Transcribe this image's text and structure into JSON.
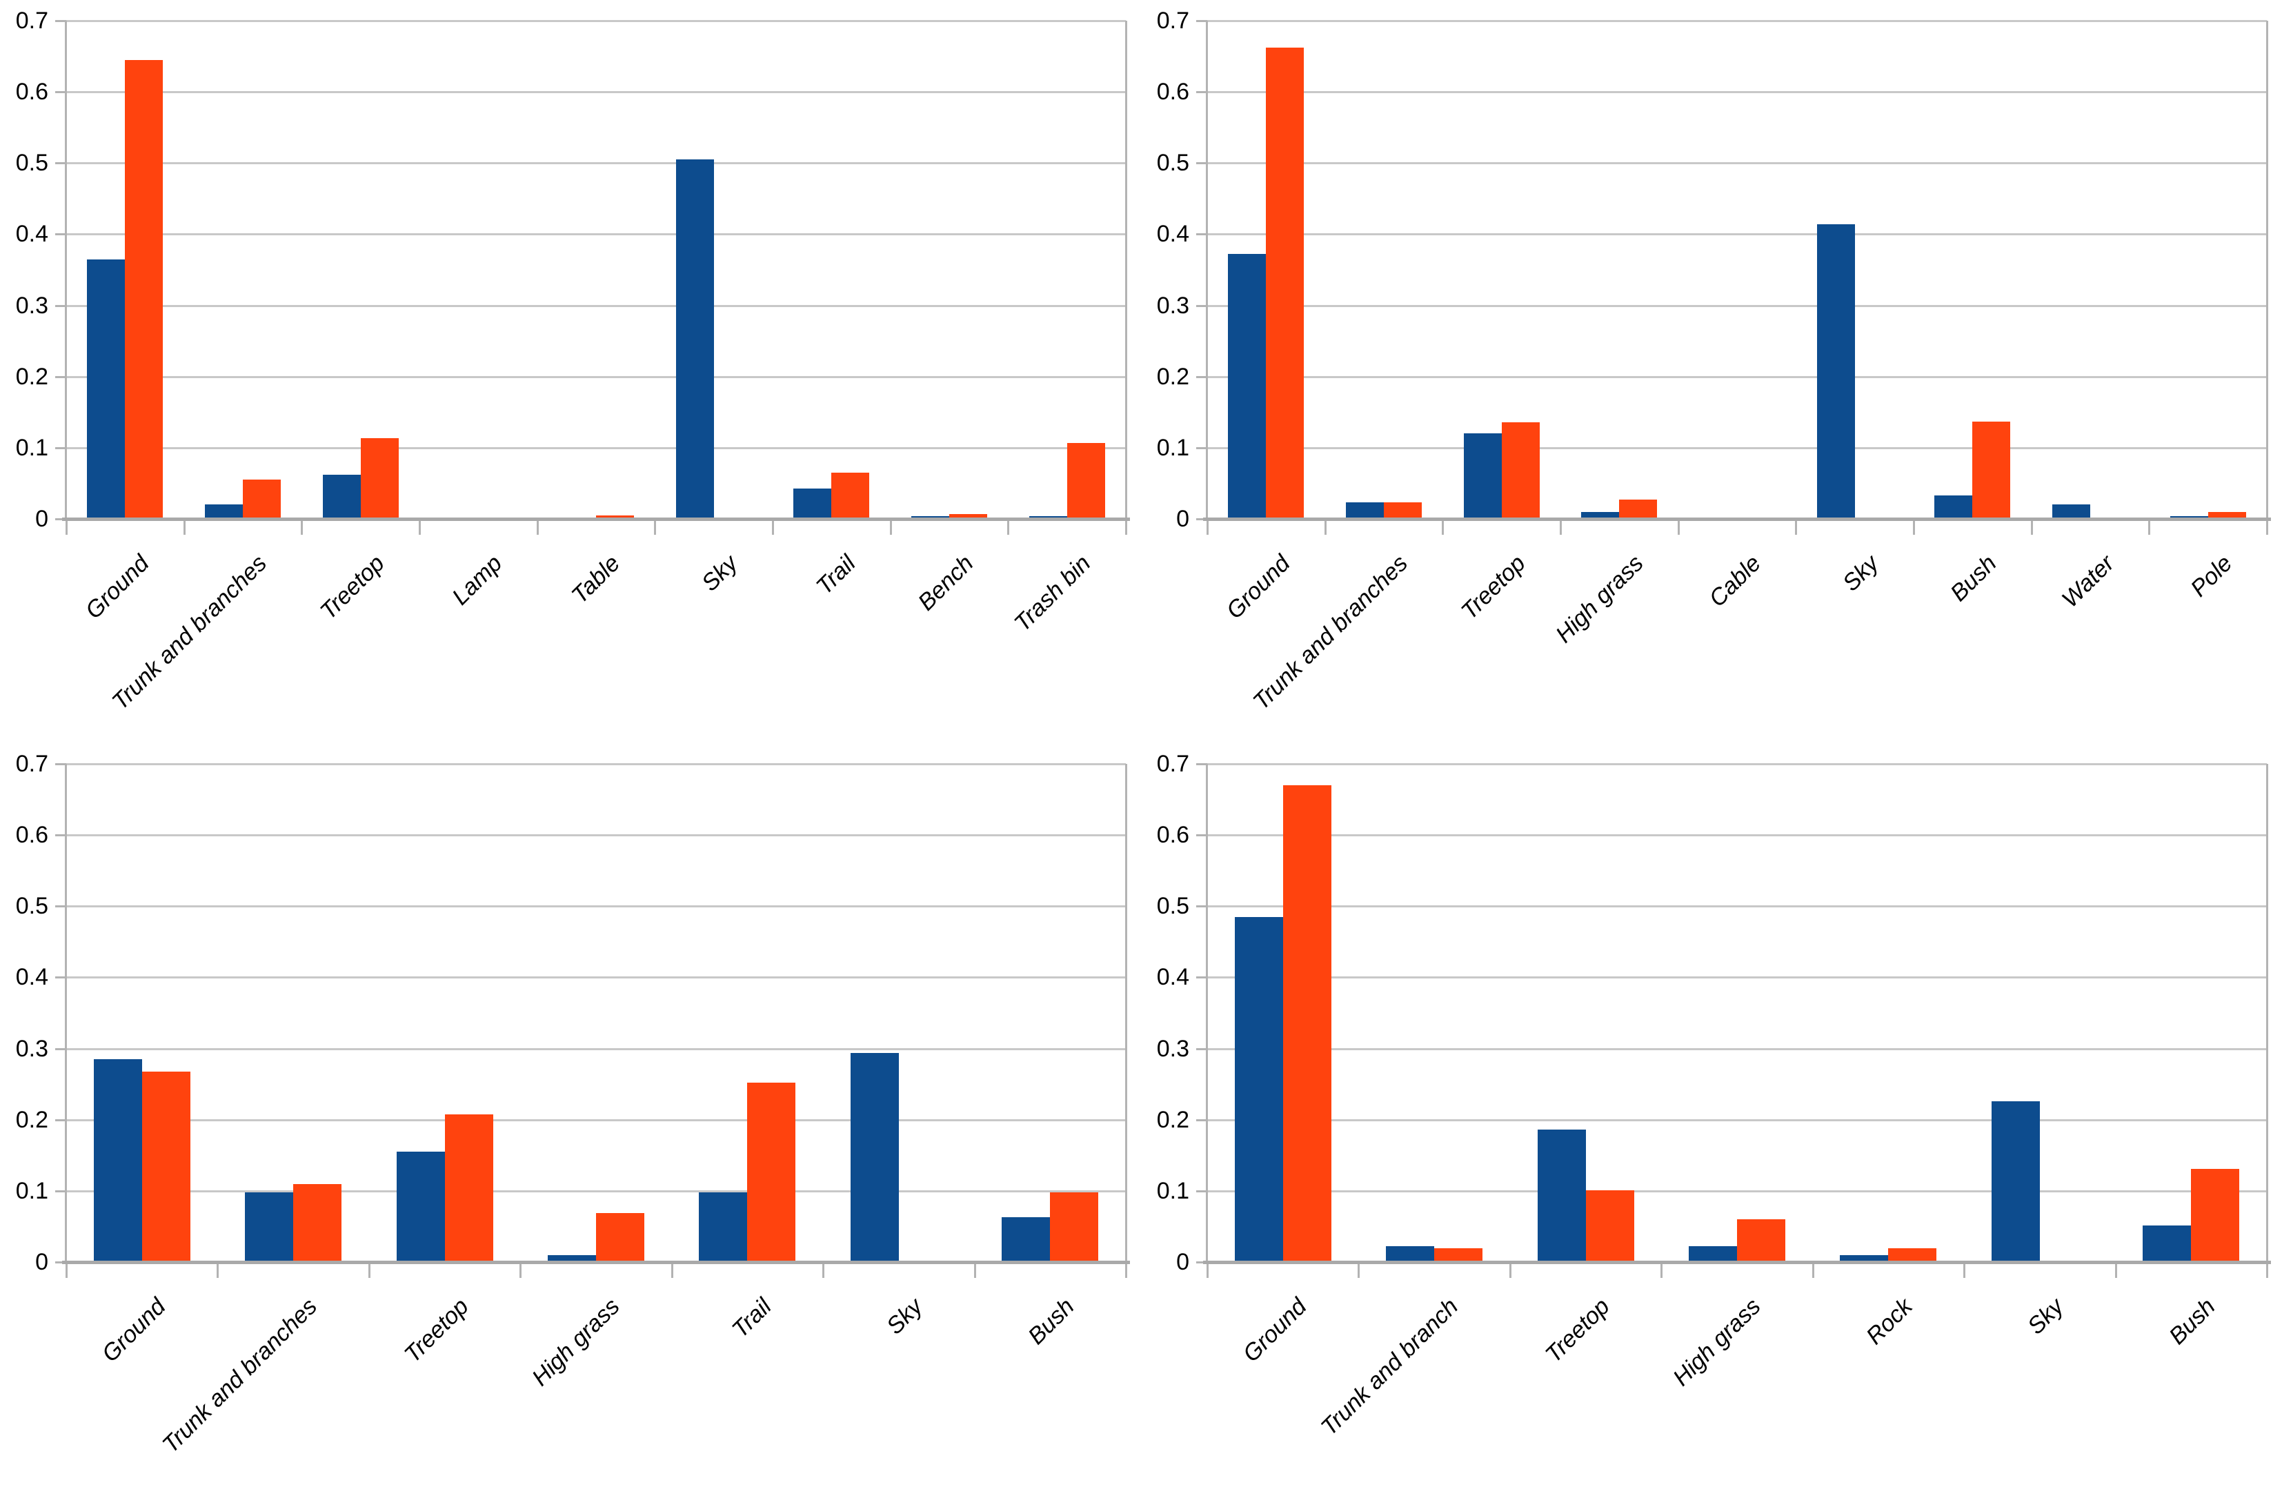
{
  "page": {
    "background": "#ffffff",
    "description_colors": {
      "series1_blue": "#0d4c8e",
      "series2_orange": "#ff430e",
      "gridline_gray": "#c8c8c8",
      "axis_gray": "#b3b3b3",
      "baseline_gray": "#a9a9a9",
      "text_black": "#000000"
    }
  },
  "axis": {
    "ytick_labels": [
      "0",
      "0.1",
      "0.2",
      "0.3",
      "0.4",
      "0.5",
      "0.6",
      "0.7"
    ],
    "ymin": 0,
    "ymax": 0.7,
    "ystep": 0.1
  },
  "chart_data": [
    {
      "type": "bar",
      "position": "top-left",
      "title": "",
      "xlabel": "",
      "ylabel": "",
      "ylim": [
        0,
        0.7
      ],
      "grid": true,
      "legend": "none",
      "categories": [
        "Ground",
        "Trunk and branches",
        "Treetop",
        "Lamp",
        "Table",
        "Sky",
        "Trail",
        "Bench",
        "Trash bin"
      ],
      "series": [
        {
          "name": "series-blue",
          "color": "#0d4c8e",
          "values": [
            0.365,
            0.02,
            0.062,
            0,
            0,
            0.505,
            0.043,
            0.004,
            0.004
          ]
        },
        {
          "name": "series-orange",
          "color": "#ff430e",
          "values": [
            0.645,
            0.055,
            0.113,
            0,
            0.005,
            0,
            0.065,
            0.007,
            0.107
          ]
        }
      ]
    },
    {
      "type": "bar",
      "position": "top-right",
      "title": "",
      "xlabel": "",
      "ylabel": "",
      "ylim": [
        0,
        0.7
      ],
      "grid": true,
      "legend": "none",
      "categories": [
        "Ground",
        "Trunk and branches",
        "Treetop",
        "High grass",
        "Cable",
        "Sky",
        "Bush",
        "Water",
        "Pole"
      ],
      "series": [
        {
          "name": "series-blue",
          "color": "#0d4c8e",
          "values": [
            0.372,
            0.023,
            0.12,
            0.01,
            0,
            0.414,
            0.033,
            0.02,
            0.004
          ]
        },
        {
          "name": "series-orange",
          "color": "#ff430e",
          "values": [
            0.662,
            0.023,
            0.136,
            0.027,
            0,
            0,
            0.137,
            0,
            0.01
          ]
        }
      ]
    },
    {
      "type": "bar",
      "position": "bottom-left",
      "title": "",
      "xlabel": "",
      "ylabel": "",
      "ylim": [
        0,
        0.7
      ],
      "grid": true,
      "legend": "none",
      "categories": [
        "Ground",
        "Trunk and branches",
        "Treetop",
        "High grass",
        "Trail",
        "Sky",
        "Bush"
      ],
      "series": [
        {
          "name": "series-blue",
          "color": "#0d4c8e",
          "values": [
            0.285,
            0.098,
            0.155,
            0.01,
            0.098,
            0.294,
            0.063
          ]
        },
        {
          "name": "series-orange",
          "color": "#ff430e",
          "values": [
            0.268,
            0.11,
            0.207,
            0.069,
            0.252,
            0,
            0.098
          ]
        }
      ]
    },
    {
      "type": "bar",
      "position": "bottom-right",
      "title": "",
      "xlabel": "",
      "ylabel": "",
      "ylim": [
        0,
        0.7
      ],
      "grid": true,
      "legend": "none",
      "categories": [
        "Ground",
        "Trunk and branch",
        "Treetop",
        "High grass",
        "Rock",
        "Sky",
        "Bush"
      ],
      "series": [
        {
          "name": "series-blue",
          "color": "#0d4c8e",
          "values": [
            0.485,
            0.022,
            0.186,
            0.022,
            0.01,
            0.226,
            0.051
          ]
        },
        {
          "name": "series-orange",
          "color": "#ff430e",
          "values": [
            0.67,
            0.019,
            0.101,
            0.06,
            0.019,
            0,
            0.131
          ]
        }
      ]
    }
  ]
}
